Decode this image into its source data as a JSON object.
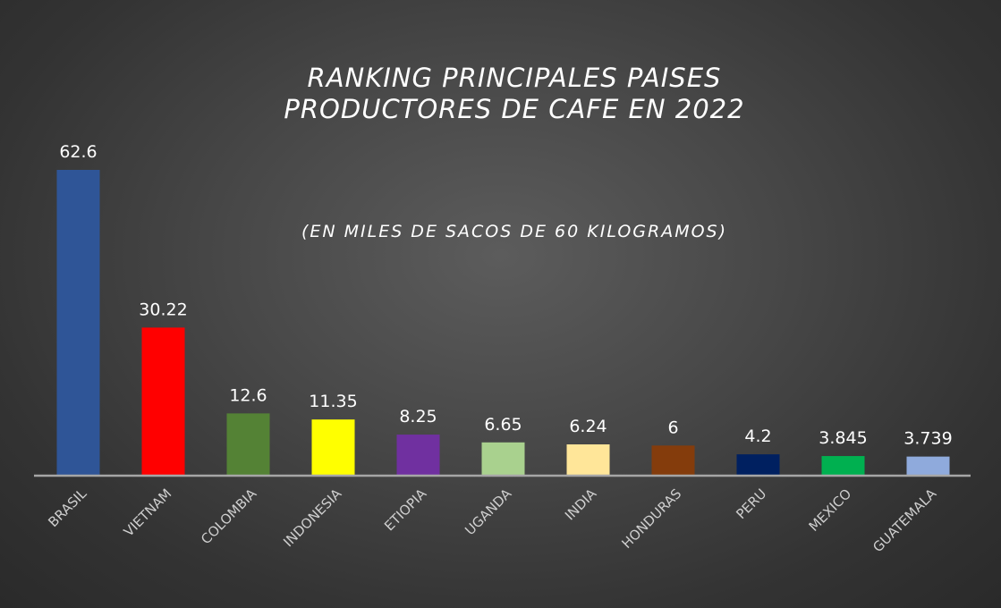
{
  "chart_data": {
    "type": "bar",
    "title_lines": [
      "RANKING PRINCIPALES PAISES",
      "PRODUCTORES DE CAFE EN 2022"
    ],
    "subtitle": "(EN MILES DE SACOS DE 60 KILOGRAMOS)",
    "categories": [
      "BRASIL",
      "VIETNAM",
      "COLOMBIA",
      "INDONESIA",
      "ETIOPIA",
      "UGANDA",
      "INDIA",
      "HONDURAS",
      "PERU",
      "MEXICO",
      "GUATEMALA"
    ],
    "values": [
      62.6,
      30.22,
      12.6,
      11.35,
      8.25,
      6.65,
      6.24,
      6,
      4.2,
      3.845,
      3.739
    ],
    "value_labels": [
      "62.6",
      "30.22",
      "12.6",
      "11.35",
      "8.25",
      "6.65",
      "6.24",
      "6",
      "4.2",
      "3.845",
      "3.739"
    ],
    "colors": [
      "#2f5597",
      "#ff0000",
      "#548235",
      "#ffff00",
      "#7030a0",
      "#a9d18e",
      "#ffe699",
      "#843c0c",
      "#002060",
      "#00b050",
      "#8faadc"
    ],
    "ylim": [
      0,
      62.6
    ],
    "grid": false,
    "legend": "none",
    "axis_line_color": "#a6a6a6"
  }
}
